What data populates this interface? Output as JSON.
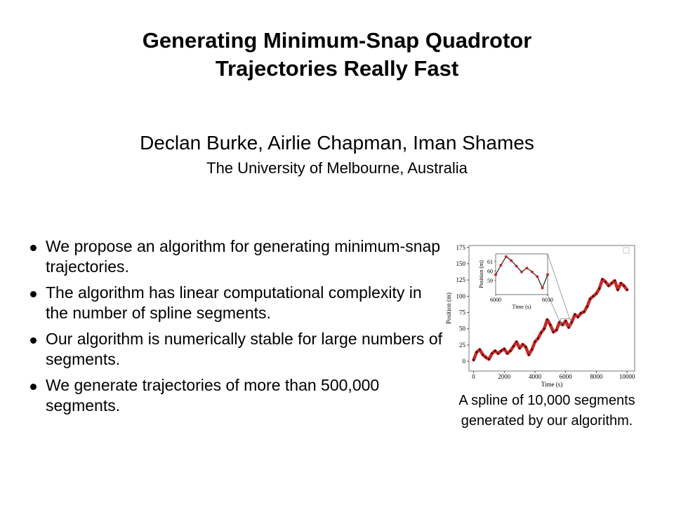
{
  "slide": {
    "title_line1": "Generating Minimum-Snap Quadrotor",
    "title_line2": "Trajectories Really Fast",
    "authors": "Declan Burke, Airlie Chapman, Iman Shames",
    "affiliation": "The University of Melbourne, Australia",
    "bullets": [
      "We propose an algorithm for generating minimum-snap trajectories.",
      "The algorithm has linear computational complexity in the number of spline segments.",
      "Our algorithm is numerically stable for large numbers of segments.",
      "We generate trajectories of more than 500,000 segments."
    ],
    "caption": "A spline of 10,000 segments generated by our algorithm.",
    "colors": {
      "series": "#c62828",
      "knots": "#000000",
      "text": "#000000"
    }
  },
  "chart_data": {
    "type": "line",
    "xlabel": "Time (s)",
    "ylabel": "Position (m)",
    "xlim": [
      -300,
      10500
    ],
    "ylim": [
      -15,
      178
    ],
    "xticks": [
      0,
      2000,
      4000,
      6000,
      8000,
      10000
    ],
    "yticks": [
      0,
      25,
      50,
      75,
      100,
      125,
      150,
      175
    ],
    "series": [
      {
        "x": [
          0,
          200,
          400,
          600,
          800,
          1000,
          1200,
          1400,
          1600,
          1800,
          2000,
          2200,
          2400,
          2600,
          2800,
          3000,
          3200,
          3400,
          3600,
          3800,
          4000,
          4200,
          4400,
          4600,
          4800,
          5000,
          5200,
          5400,
          5600,
          5800,
          6000,
          6200,
          6400,
          6600,
          6800,
          7000,
          7200,
          7400,
          7600,
          7800,
          8000,
          8200,
          8400,
          8600,
          8800,
          9000,
          9200,
          9400,
          9600,
          9800,
          10000
        ],
        "y": [
          2,
          14,
          18,
          10,
          6,
          3,
          12,
          16,
          12,
          16,
          19,
          12,
          16,
          23,
          30,
          20,
          26,
          22,
          10,
          18,
          30,
          35,
          44,
          50,
          64,
          56,
          45,
          48,
          60,
          56,
          62,
          52,
          60,
          72,
          68,
          74,
          76,
          84,
          96,
          100,
          104,
          112,
          126,
          122,
          116,
          120,
          124,
          110,
          120,
          116,
          110
        ]
      }
    ],
    "inset": {
      "xlabel": "Time (s)",
      "ylabel": "Position (m)",
      "xlim": [
        6000,
        6010
      ],
      "ylim": [
        57.5,
        61.8
      ],
      "xticks": [
        6000,
        6010
      ],
      "yticks": [
        59,
        60,
        61
      ],
      "x": [
        6000,
        6001,
        6002,
        6003,
        6004,
        6005,
        6006,
        6007,
        6008,
        6009,
        6010
      ],
      "y": [
        59.6,
        60.6,
        61.5,
        61.1,
        60.5,
        59.9,
        60.3,
        59.9,
        59.4,
        58.2,
        59.6
      ]
    }
  }
}
